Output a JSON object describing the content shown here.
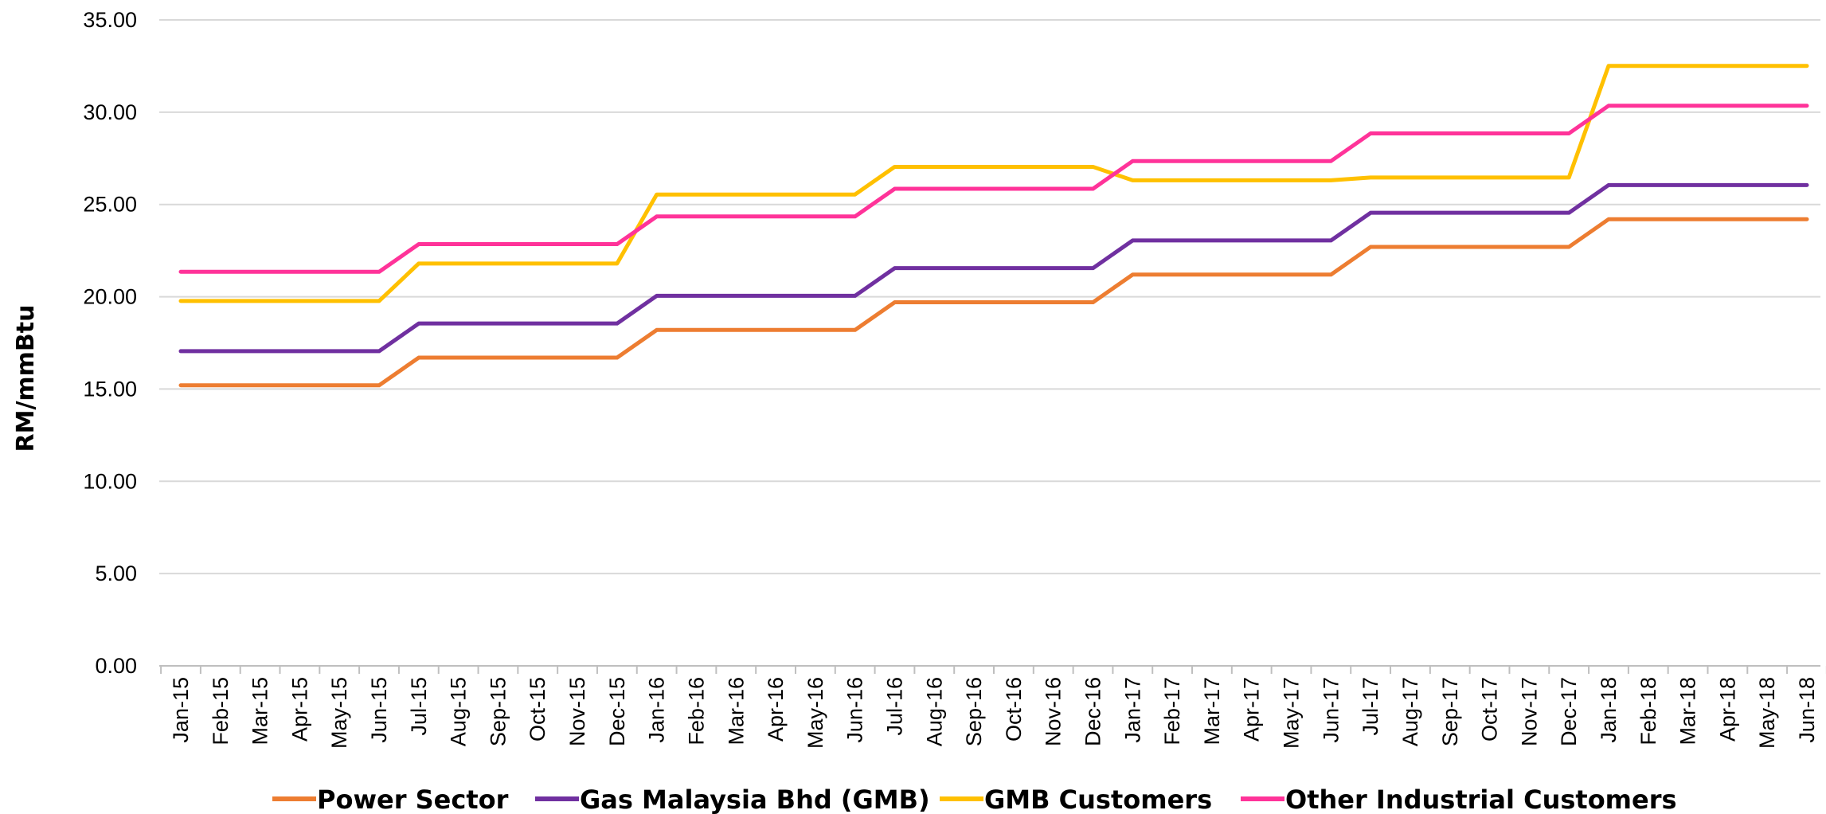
{
  "chart_data": {
    "type": "line",
    "title": "",
    "xlabel": "",
    "ylabel": "RM/mmBtu",
    "ylim": [
      0,
      35
    ],
    "yticks": [
      "0.00",
      "5.00",
      "10.00",
      "15.00",
      "20.00",
      "25.00",
      "30.00",
      "35.00"
    ],
    "grid": "horizontal",
    "legend_position": "bottom",
    "categories": [
      "Jan-15",
      "Feb-15",
      "Mar-15",
      "Apr-15",
      "May-15",
      "Jun-15",
      "Jul-15",
      "Aug-15",
      "Sep-15",
      "Oct-15",
      "Nov-15",
      "Dec-15",
      "Jan-16",
      "Feb-16",
      "Mar-16",
      "Apr-16",
      "May-16",
      "Jun-16",
      "Jul-16",
      "Aug-16",
      "Sep-16",
      "Oct-16",
      "Nov-16",
      "Dec-16",
      "Jan-17",
      "Feb-17",
      "Mar-17",
      "Apr-17",
      "May-17",
      "Jun-17",
      "Jul-17",
      "Aug-17",
      "Sep-17",
      "Oct-17",
      "Nov-17",
      "Dec-17",
      "Jan-18",
      "Feb-18",
      "Mar-18",
      "Apr-18",
      "May-18",
      "Jun-18"
    ],
    "series": [
      {
        "name": "Power Sector",
        "color": "#ED7D31",
        "values": [
          15.2,
          15.2,
          15.2,
          15.2,
          15.2,
          15.2,
          16.7,
          16.7,
          16.7,
          16.7,
          16.7,
          16.7,
          18.2,
          18.2,
          18.2,
          18.2,
          18.2,
          18.2,
          19.7,
          19.7,
          19.7,
          19.7,
          19.7,
          19.7,
          21.2,
          21.2,
          21.2,
          21.2,
          21.2,
          21.2,
          22.7,
          22.7,
          22.7,
          22.7,
          22.7,
          22.7,
          24.2,
          24.2,
          24.2,
          24.2,
          24.2,
          24.2
        ]
      },
      {
        "name": "Gas Malaysia Bhd (GMB)",
        "color": "#7030A0",
        "values": [
          17.05,
          17.05,
          17.05,
          17.05,
          17.05,
          17.05,
          18.55,
          18.55,
          18.55,
          18.55,
          18.55,
          18.55,
          20.05,
          20.05,
          20.05,
          20.05,
          20.05,
          20.05,
          21.55,
          21.55,
          21.55,
          21.55,
          21.55,
          21.55,
          23.05,
          23.05,
          23.05,
          23.05,
          23.05,
          23.05,
          24.55,
          24.55,
          24.55,
          24.55,
          24.55,
          24.55,
          26.05,
          26.05,
          26.05,
          26.05,
          26.05,
          26.05
        ]
      },
      {
        "name": "GMB Customers",
        "color": "#FFC000",
        "values": [
          19.77,
          19.77,
          19.77,
          19.77,
          19.77,
          19.77,
          21.8,
          21.8,
          21.8,
          21.8,
          21.8,
          21.8,
          25.54,
          25.54,
          25.54,
          25.54,
          25.54,
          25.54,
          27.04,
          27.04,
          27.04,
          27.04,
          27.04,
          27.04,
          26.31,
          26.31,
          26.31,
          26.31,
          26.31,
          26.31,
          26.46,
          26.46,
          26.46,
          26.46,
          26.46,
          26.46,
          32.51,
          32.51,
          32.51,
          32.51,
          32.51,
          32.51
        ]
      },
      {
        "name": "Other Industrial Customers",
        "color": "#FF3399",
        "values": [
          21.35,
          21.35,
          21.35,
          21.35,
          21.35,
          21.35,
          22.85,
          22.85,
          22.85,
          22.85,
          22.85,
          22.85,
          24.35,
          24.35,
          24.35,
          24.35,
          24.35,
          24.35,
          25.85,
          25.85,
          25.85,
          25.85,
          25.85,
          25.85,
          27.35,
          27.35,
          27.35,
          27.35,
          27.35,
          27.35,
          28.85,
          28.85,
          28.85,
          28.85,
          28.85,
          28.85,
          30.35,
          30.35,
          30.35,
          30.35,
          30.35,
          30.35
        ]
      }
    ]
  }
}
